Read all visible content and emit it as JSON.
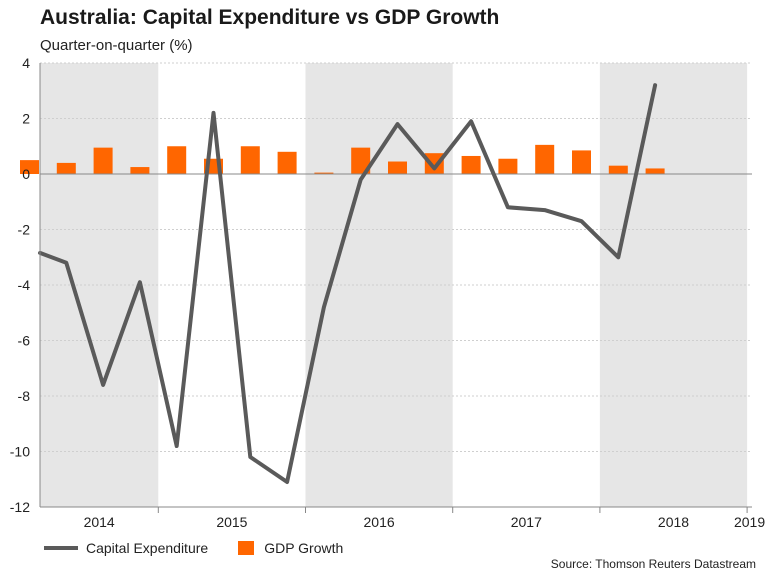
{
  "chart_data": {
    "type": "bar+line",
    "title": "Australia: Capital Expenditure vs GDP Growth",
    "subtitle": "Quarter-on-quarter (%)",
    "source": "Source: Thomson Reuters Datastream",
    "ylim": [
      -12,
      4
    ],
    "yticks": [
      "4",
      "2",
      "0",
      "-2",
      "-4",
      "-6",
      "-8",
      "-10",
      "-12"
    ],
    "year_labels": [
      "2014",
      "2015",
      "2016",
      "2017",
      "2018",
      "2019"
    ],
    "quarters": [
      "2014-Q1",
      "2014-Q2",
      "2014-Q3",
      "2014-Q4",
      "2015-Q1",
      "2015-Q2",
      "2015-Q3",
      "2015-Q4",
      "2016-Q1",
      "2016-Q2",
      "2016-Q3",
      "2016-Q4",
      "2017-Q1",
      "2017-Q2",
      "2017-Q3",
      "2017-Q4",
      "2018-Q1",
      "2018-Q2",
      "2018-Q3",
      "2018-Q4"
    ],
    "shaded_years": [
      "2014",
      "2016",
      "2018"
    ],
    "grid": true,
    "legend_position": "bottom-left",
    "series": [
      {
        "name": "Capital Expenditure",
        "type": "line",
        "color": "#5a5a5a",
        "values": [
          -2.7,
          -3.2,
          -7.6,
          -3.9,
          -9.8,
          2.2,
          -10.2,
          -11.1,
          -4.8,
          -0.2,
          1.8,
          0.2,
          1.9,
          -1.2,
          -1.3,
          -1.7,
          -3.0,
          3.2
        ]
      },
      {
        "name": "GDP Growth",
        "type": "bar",
        "color": "#ff6600",
        "values": [
          0.5,
          0.4,
          0.95,
          0.25,
          1.0,
          0.55,
          1.0,
          0.8,
          0.05,
          0.95,
          0.45,
          0.75,
          0.65,
          0.55,
          1.05,
          0.85,
          0.3,
          0.2
        ]
      }
    ]
  }
}
